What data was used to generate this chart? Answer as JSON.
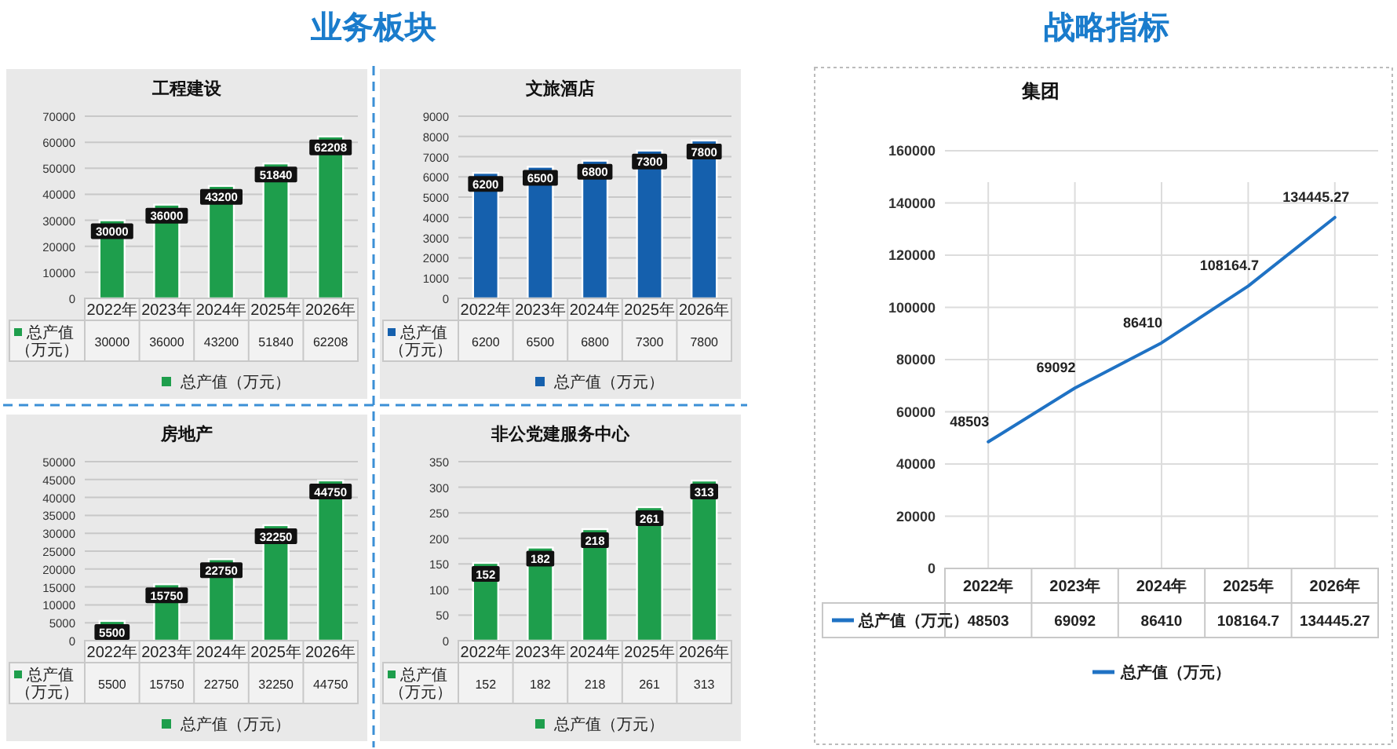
{
  "chart_data": [
    {
      "type": "bar",
      "title": "工程建设",
      "annotations": [
        "30000",
        "36000",
        "43200",
        "51840",
        "62208",
        "业务板块"
      ],
      "categories": [
        "2022年",
        "2023年",
        "2024年",
        "2025年",
        "2026年"
      ],
      "series": [
        {
          "name": "总产值（万元）",
          "color": "#1e9e4c",
          "values": [
            30000,
            36000,
            43200,
            51840,
            62208
          ]
        }
      ],
      "ylim": [
        0,
        70000
      ],
      "yticks": [
        0,
        10000,
        20000,
        30000,
        40000,
        50000,
        60000,
        70000
      ],
      "grid": "y",
      "legend": "bottom",
      "data_labels": true
    },
    {
      "type": "bar",
      "title": "文旅酒店",
      "annotations": [
        "6200",
        "6500",
        "6800",
        "7300",
        "7800"
      ],
      "categories": [
        "2022年",
        "2023年",
        "2024年",
        "2025年",
        "2026年"
      ],
      "series": [
        {
          "name": "总产值（万元）",
          "color": "#1560ad",
          "values": [
            6200,
            6500,
            6800,
            7300,
            7800
          ]
        }
      ],
      "ylim": [
        0,
        9000
      ],
      "yticks": [
        0,
        1000,
        2000,
        3000,
        4000,
        5000,
        6000,
        7000,
        8000,
        9000
      ],
      "grid": "y",
      "legend": "bottom",
      "data_labels": true
    },
    {
      "type": "bar",
      "title": "房地产",
      "annotations": [
        "5500",
        "15750",
        "22750",
        "32250",
        "44750"
      ],
      "categories": [
        "2022年",
        "2023年",
        "2024年",
        "2025年",
        "2026年"
      ],
      "series": [
        {
          "name": "总产值（万元）",
          "color": "#1e9e4c",
          "values": [
            5500,
            15750,
            22750,
            32250,
            44750
          ]
        }
      ],
      "ylim": [
        0,
        50000
      ],
      "yticks": [
        0,
        5000,
        10000,
        15000,
        20000,
        25000,
        30000,
        35000,
        40000,
        45000,
        50000
      ],
      "grid": "y",
      "legend": "bottom",
      "data_labels": true
    },
    {
      "type": "bar",
      "title": "非公党建服务中心",
      "annotations": [
        "152",
        "182",
        "218",
        "261",
        "313"
      ],
      "categories": [
        "2022年",
        "2023年",
        "2024年",
        "2025年",
        "2026年"
      ],
      "series": [
        {
          "name": "总产值（万元）",
          "color": "#1e9e4c",
          "values": [
            152,
            182,
            218,
            261,
            313
          ]
        }
      ],
      "ylim": [
        0,
        350
      ],
      "yticks": [
        0,
        50,
        100,
        150,
        200,
        250,
        300,
        350
      ],
      "grid": "y",
      "legend": "bottom",
      "data_labels": true
    },
    {
      "type": "line",
      "title": "集团",
      "annotations": [
        "48503",
        "69092",
        "86410",
        "108164.7",
        "134445.27",
        "战略指标"
      ],
      "categories": [
        "2022年",
        "2023年",
        "2024年",
        "2025年",
        "2026年"
      ],
      "series": [
        {
          "name": "总产值（万元）",
          "color": "#1f72c4",
          "values": [
            48503,
            69092,
            86410,
            108164.7,
            134445.27
          ]
        }
      ],
      "ylim": [
        0,
        160000
      ],
      "yticks": [
        0,
        20000,
        40000,
        60000,
        80000,
        100000,
        120000,
        140000,
        160000
      ],
      "grid": true,
      "legend": "bottom",
      "data_labels": true,
      "marker": "none",
      "line_style": "solid"
    }
  ]
}
